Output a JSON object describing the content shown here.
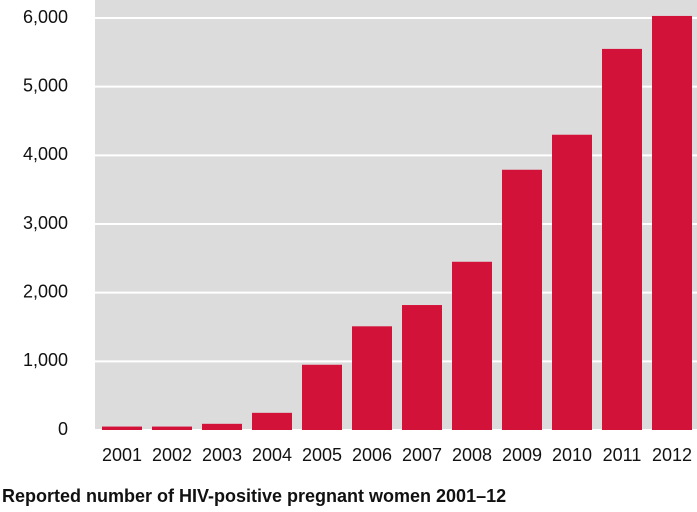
{
  "chart_data": {
    "type": "bar",
    "title": "Reported number of HIV-positive pregnant women 2001–12",
    "categories": [
      "2001",
      "2002",
      "2003",
      "2004",
      "2005",
      "2006",
      "2007",
      "2008",
      "2009",
      "2010",
      "2011",
      "2012"
    ],
    "values": [
      50,
      50,
      90,
      250,
      950,
      1510,
      1820,
      2450,
      3790,
      4300,
      5550,
      6030
    ],
    "color": "#d3123a",
    "ylim": [
      0,
      6000
    ],
    "yticks": [
      0,
      {
        "value": 1000,
        "label": "1,000"
      },
      {
        "value": 2000,
        "label": "2,000"
      },
      {
        "value": 3000,
        "label": "3,000"
      },
      {
        "value": 4000,
        "label": "4,000"
      },
      {
        "value": 5000,
        "label": "5,000"
      },
      {
        "value": 6000,
        "label": "6,000"
      }
    ],
    "grid": true
  }
}
